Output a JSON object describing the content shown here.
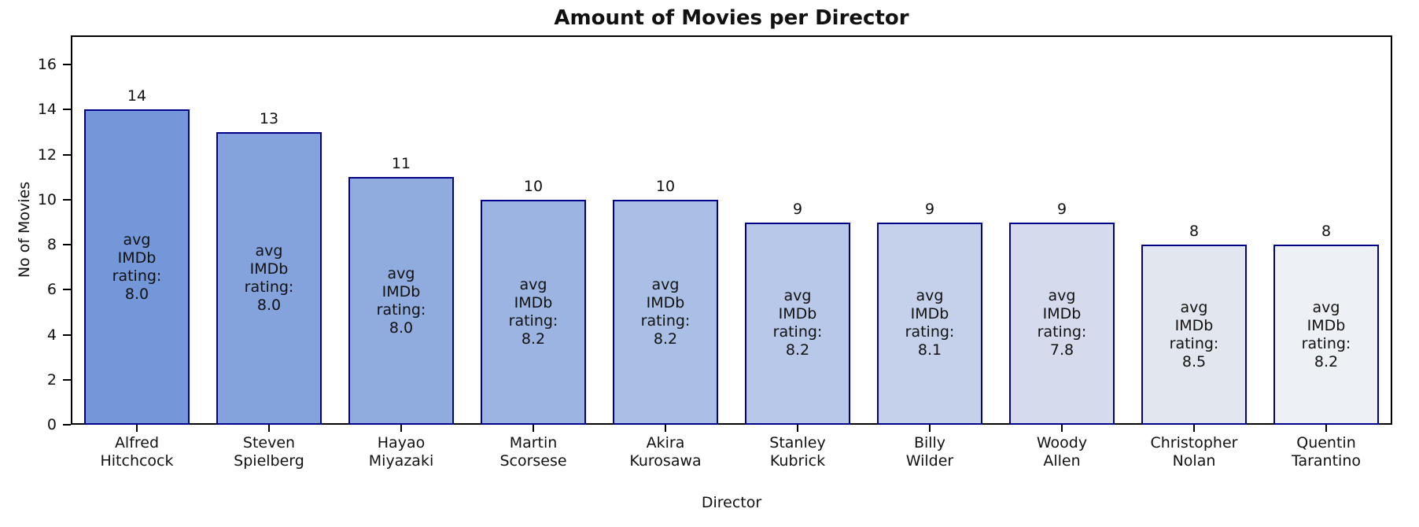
{
  "chart_data": {
    "type": "bar",
    "title": "Amount of Movies per Director",
    "xlabel": "Director",
    "ylabel": "No of Movies",
    "categories": [
      "Alfred Hitchcock",
      "Steven Spielberg",
      "Hayao Miyazaki",
      "Martin Scorsese",
      "Akira Kurosawa",
      "Stanley Kubrick",
      "Billy Wilder",
      "Woody Allen",
      "Christopher Nolan",
      "Quentin Tarantino"
    ],
    "values": [
      14,
      13,
      11,
      10,
      10,
      9,
      9,
      9,
      8,
      8
    ],
    "bar_value_labels": [
      "14",
      "13",
      "11",
      "10",
      "10",
      "9",
      "9",
      "9",
      "8",
      "8"
    ],
    "avg_imdb_ratings": [
      "8.0",
      "8.0",
      "8.0",
      "8.2",
      "8.2",
      "8.2",
      "8.1",
      "7.8",
      "8.5",
      "8.2"
    ],
    "bar_annotation_lines": [
      "avg",
      "IMDb",
      "rating:"
    ],
    "yticks": [
      "0",
      "2",
      "4",
      "6",
      "8",
      "10",
      "12",
      "14",
      "16"
    ],
    "ylim": [
      0,
      17.3
    ],
    "grid": false,
    "legend_position": "none",
    "bar_colors": [
      "#7397d8",
      "#84a2dc",
      "#90abde",
      "#9cb4e1",
      "#aabfe5",
      "#b8c8e8",
      "#c5d1ea",
      "#d5dbec",
      "#e2e6ee",
      "#edf0f4"
    ],
    "bar_edge_color": "#00008b",
    "axis_color": "#000000",
    "text_color": "#111111",
    "background_color": "#ffffff"
  }
}
